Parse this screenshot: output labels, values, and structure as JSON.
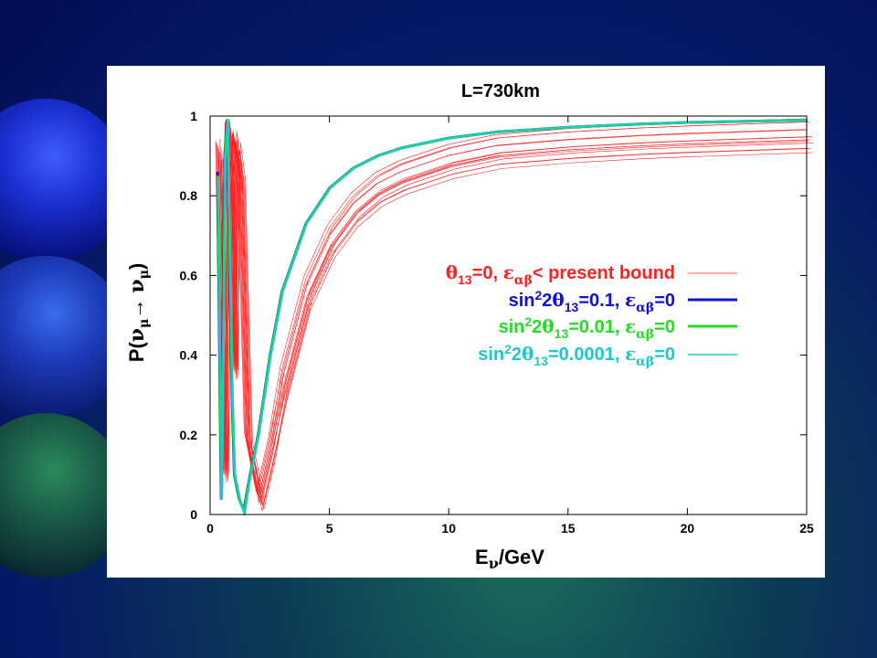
{
  "chart_data": {
    "type": "line",
    "title": "L=730km",
    "xlabel": "E_ν/GeV",
    "ylabel": "P(ν_μ→ ν_μ)",
    "xlim": [
      0,
      25
    ],
    "ylim": [
      0,
      1
    ],
    "x_ticks": [
      "0",
      "5",
      "10",
      "15",
      "20",
      "25"
    ],
    "y_ticks": [
      "0",
      "0.2",
      "0.4",
      "0.6",
      "0.8",
      "1"
    ],
    "legend_position": "center-right",
    "series": [
      {
        "name": "θ13=0, εαβ< present bound",
        "color": "#ff2020",
        "style": "thin-band",
        "x": [
          0.3,
          0.4,
          0.5,
          0.6,
          0.7,
          0.8,
          0.9,
          1.0,
          1.2,
          1.5,
          2.0,
          2.5,
          3,
          4,
          5,
          6,
          7,
          8,
          10,
          12,
          15,
          18,
          20,
          25
        ],
        "y": [
          0.93,
          0.55,
          0.12,
          0.78,
          0.98,
          0.84,
          0.38,
          0.95,
          0.86,
          0.2,
          0.05,
          0.18,
          0.36,
          0.59,
          0.72,
          0.8,
          0.85,
          0.88,
          0.92,
          0.945,
          0.96,
          0.97,
          0.975,
          0.985
        ]
      },
      {
        "name": "sin²2θ13=0.1, εαβ=0",
        "color": "#1010d8",
        "style": "thick",
        "x": [
          0.3,
          0.4,
          0.45,
          0.5,
          0.6,
          0.7,
          0.8,
          0.9,
          1.0,
          1.2,
          1.4,
          1.6,
          2.0,
          2.5,
          3,
          4,
          5,
          6,
          7,
          8,
          10,
          12,
          15,
          18,
          20,
          25
        ],
        "y": [
          0.86,
          0.3,
          0.04,
          0.3,
          0.9,
          0.99,
          0.65,
          0.3,
          0.1,
          0.04,
          0.01,
          0.08,
          0.2,
          0.4,
          0.56,
          0.73,
          0.82,
          0.87,
          0.9,
          0.92,
          0.945,
          0.96,
          0.972,
          0.98,
          0.984,
          0.99
        ]
      },
      {
        "name": "sin²2θ13=0.01, εαβ=0",
        "color": "#22dd22",
        "style": "thick",
        "x": [
          0.3,
          0.4,
          0.45,
          0.5,
          0.6,
          0.7,
          0.8,
          0.9,
          1.0,
          1.2,
          1.4,
          1.6,
          2.0,
          2.5,
          3,
          4,
          5,
          6,
          7,
          8,
          10,
          12,
          15,
          18,
          20,
          25
        ],
        "y": [
          0.85,
          0.3,
          0.04,
          0.3,
          0.9,
          0.99,
          0.65,
          0.3,
          0.1,
          0.04,
          0.005,
          0.08,
          0.2,
          0.4,
          0.56,
          0.73,
          0.82,
          0.87,
          0.9,
          0.92,
          0.945,
          0.96,
          0.972,
          0.98,
          0.984,
          0.99
        ]
      },
      {
        "name": "sin²2θ13=0.0001, εαβ=0",
        "color": "#1ec8c8",
        "style": "thick",
        "x": [
          0.3,
          0.4,
          0.45,
          0.5,
          0.6,
          0.7,
          0.8,
          0.9,
          1.0,
          1.2,
          1.4,
          1.6,
          2.0,
          2.5,
          3,
          4,
          5,
          6,
          7,
          8,
          10,
          12,
          15,
          18,
          20,
          25
        ],
        "y": [
          0.84,
          0.3,
          0.04,
          0.3,
          0.9,
          0.99,
          0.65,
          0.3,
          0.1,
          0.04,
          0.0,
          0.08,
          0.2,
          0.4,
          0.56,
          0.73,
          0.82,
          0.87,
          0.9,
          0.92,
          0.945,
          0.96,
          0.972,
          0.98,
          0.984,
          0.99
        ]
      }
    ]
  }
}
